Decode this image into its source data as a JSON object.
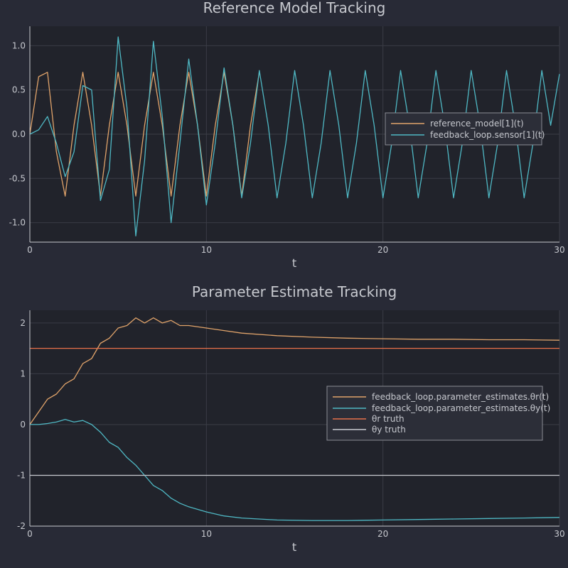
{
  "chart_data": [
    {
      "type": "line",
      "title": "Reference Model Tracking",
      "xlabel": "t",
      "ylabel": "",
      "xlim": [
        0,
        30
      ],
      "ylim": [
        -1.22,
        1.22
      ],
      "xticks": [
        0,
        10,
        20,
        30
      ],
      "yticks": [
        1.0,
        0.5,
        0.0,
        -0.5,
        -1.0
      ],
      "xtick_labels": [
        "0",
        "10",
        "20",
        "30"
      ],
      "ytick_labels": [
        "1.0",
        "0.5",
        "0.0",
        "-0.5",
        "-1.0"
      ],
      "grid": true,
      "legend_position": "right",
      "series": [
        {
          "name": "reference_model[1](t)",
          "color": "#e0a36a",
          "x": [
            0,
            0.5,
            1,
            1.5,
            2,
            2.5,
            3,
            3.5,
            4,
            4.5,
            5,
            5.5,
            6,
            6.5,
            7,
            7.5,
            8,
            8.5,
            9,
            9.5,
            10,
            10.5,
            11,
            11.5,
            12,
            12.5,
            13
          ],
          "y": [
            0,
            0.65,
            0.7,
            -0.2,
            -0.7,
            0.1,
            0.7,
            0.1,
            -0.7,
            0.1,
            0.7,
            0.1,
            -0.7,
            0.1,
            0.7,
            0.1,
            -0.7,
            0.1,
            0.7,
            0.1,
            -0.7,
            0.1,
            0.7,
            0.1,
            -0.7,
            0.1,
            0.7
          ]
        },
        {
          "name": "feedback_loop.sensor[1](t)",
          "color": "#4fb8c4",
          "x": [
            0,
            0.5,
            1,
            1.5,
            2,
            2.5,
            3,
            3.5,
            4,
            4.5,
            5,
            5.5,
            6,
            6.5,
            7,
            7.5,
            8,
            8.5,
            9,
            9.5,
            10,
            10.5,
            11,
            11.5,
            12,
            12.5,
            13,
            13.5,
            14,
            14.5,
            15,
            15.5,
            16,
            16.5,
            17,
            17.5,
            18,
            18.5,
            19,
            19.5,
            20,
            20.5,
            21,
            21.5,
            22,
            22.5,
            23,
            23.5,
            24,
            24.5,
            25,
            25.5,
            26,
            26.5,
            27,
            27.5,
            28,
            28.5,
            29,
            29.5,
            30
          ],
          "y": [
            0,
            0.05,
            0.2,
            -0.1,
            -0.48,
            -0.2,
            0.55,
            0.5,
            -0.75,
            -0.4,
            1.1,
            0.3,
            -1.15,
            -0.3,
            1.05,
            0.2,
            -1.0,
            -0.1,
            0.85,
            0.1,
            -0.8,
            -0.1,
            0.75,
            0.1,
            -0.72,
            -0.1,
            0.72,
            0.1,
            -0.72,
            -0.1,
            0.72,
            0.1,
            -0.72,
            -0.1,
            0.72,
            0.1,
            -0.72,
            -0.1,
            0.72,
            0.1,
            -0.72,
            -0.1,
            0.72,
            0.1,
            -0.72,
            -0.1,
            0.72,
            0.1,
            -0.72,
            -0.1,
            0.72,
            0.1,
            -0.72,
            -0.1,
            0.72,
            0.1,
            -0.72,
            -0.1,
            0.72,
            0.1,
            0.68
          ]
        }
      ]
    },
    {
      "type": "line",
      "title": "Parameter Estimate Tracking",
      "xlabel": "t",
      "ylabel": "",
      "xlim": [
        0,
        30
      ],
      "ylim": [
        -2.0,
        2.25
      ],
      "xticks": [
        0,
        10,
        20,
        30
      ],
      "yticks": [
        2,
        1,
        0,
        -1,
        -2
      ],
      "xtick_labels": [
        "0",
        "10",
        "20",
        "30"
      ],
      "ytick_labels": [
        "2",
        "1",
        "0",
        "-1",
        "-2"
      ],
      "grid": true,
      "legend_position": "right",
      "series": [
        {
          "name": "feedback_loop.parameter_estimates.θr(t)",
          "color": "#e0a36a",
          "x": [
            0,
            0.5,
            1,
            1.5,
            2,
            2.5,
            3,
            3.5,
            4,
            4.5,
            5,
            5.5,
            6,
            6.5,
            7,
            7.5,
            8,
            8.5,
            9,
            10,
            11,
            12,
            14,
            16,
            18,
            20,
            22,
            24,
            26,
            28,
            30
          ],
          "y": [
            0,
            0.25,
            0.5,
            0.6,
            0.8,
            0.9,
            1.2,
            1.3,
            1.6,
            1.7,
            1.9,
            1.95,
            2.1,
            2.0,
            2.1,
            2.0,
            2.05,
            1.95,
            1.95,
            1.9,
            1.85,
            1.8,
            1.75,
            1.72,
            1.7,
            1.69,
            1.68,
            1.68,
            1.67,
            1.67,
            1.66
          ]
        },
        {
          "name": "feedback_loop.parameter_estimates.θy(t)",
          "color": "#4fb8c4",
          "x": [
            0,
            0.5,
            1,
            1.5,
            2,
            2.5,
            3,
            3.5,
            4,
            4.5,
            5,
            5.5,
            6,
            6.5,
            7,
            7.5,
            8,
            8.5,
            9,
            10,
            11,
            12,
            14,
            16,
            18,
            20,
            22,
            24,
            26,
            28,
            30
          ],
          "y": [
            0,
            0.0,
            0.02,
            0.05,
            0.1,
            0.05,
            0.08,
            0.0,
            -0.15,
            -0.35,
            -0.45,
            -0.65,
            -0.8,
            -1.0,
            -1.2,
            -1.3,
            -1.45,
            -1.55,
            -1.62,
            -1.72,
            -1.8,
            -1.84,
            -1.88,
            -1.89,
            -1.89,
            -1.88,
            -1.87,
            -1.86,
            -1.85,
            -1.84,
            -1.83
          ]
        },
        {
          "name": "θr truth",
          "color": "#e8704a",
          "x": [
            0,
            30
          ],
          "y": [
            1.5,
            1.5
          ]
        },
        {
          "name": "θy truth",
          "color": "#c8cad0",
          "x": [
            0,
            30
          ],
          "y": [
            -1.0,
            -1.0
          ]
        }
      ]
    }
  ]
}
